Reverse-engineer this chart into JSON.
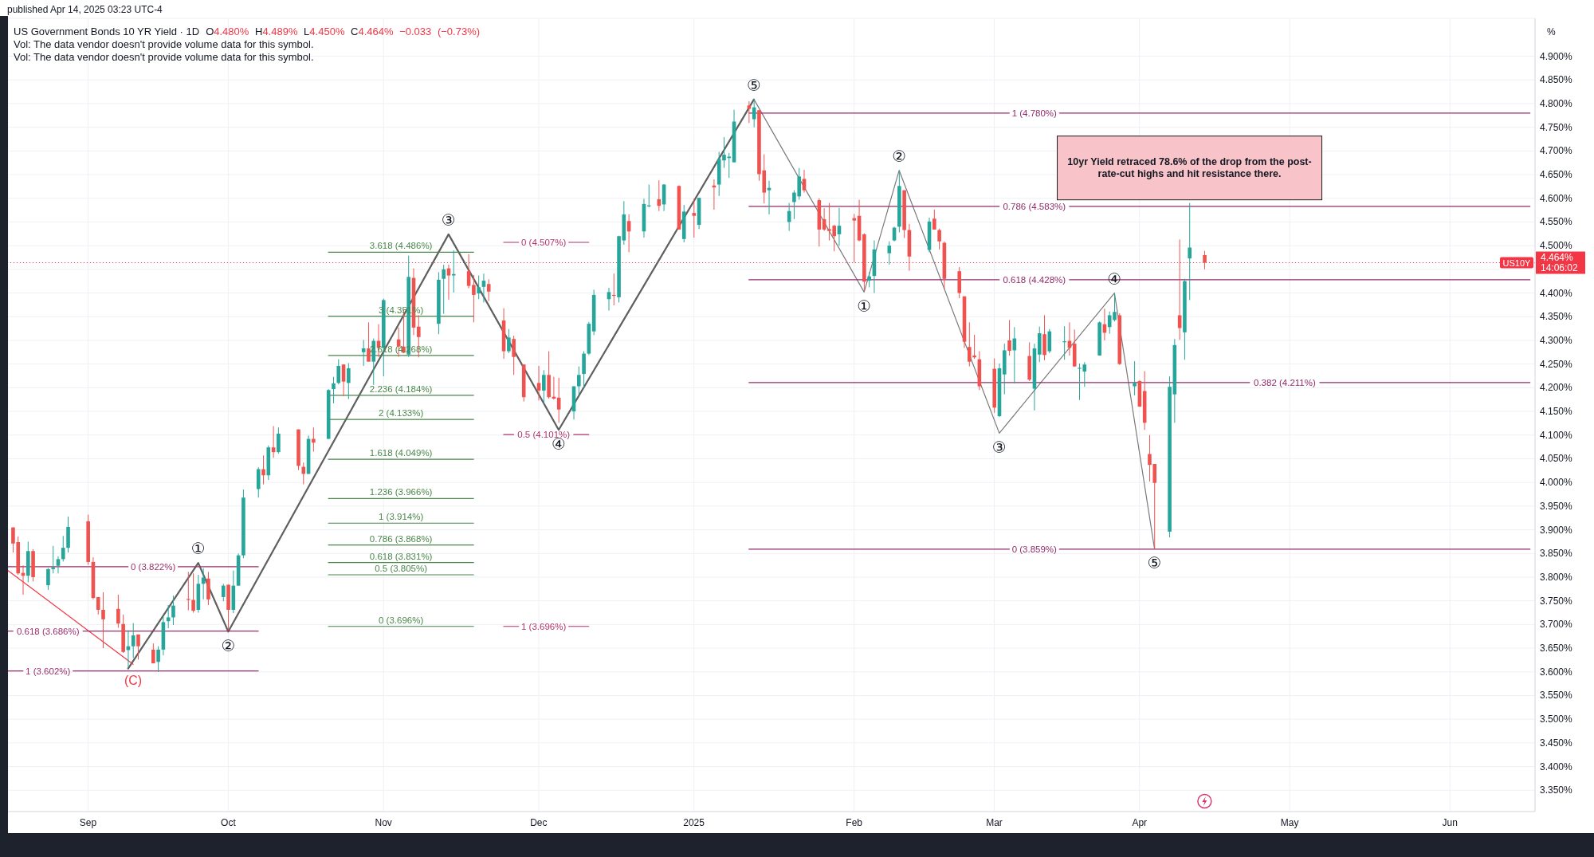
{
  "chart_data": {
    "type": "candlestick",
    "title": "US Government Bonds 10 YR Yield · 1D",
    "subtitle": "O4.480% H4.489% L4.450% C4.464% −0.033 (−0.73%)",
    "ylabel": "%",
    "x": [
      "2024-08-19",
      "2024-08-20",
      "2024-08-21",
      "2024-08-22",
      "2024-08-23",
      "2024-08-26",
      "2024-08-27",
      "2024-08-28",
      "2024-08-29",
      "2024-08-30",
      "2024-09-03",
      "2024-09-04",
      "2024-09-05",
      "2024-09-06",
      "2024-09-09",
      "2024-09-10",
      "2024-09-11",
      "2024-09-12",
      "2024-09-13",
      "2024-09-16",
      "2024-09-17",
      "2024-09-18",
      "2024-09-19",
      "2024-09-20",
      "2024-09-23",
      "2024-09-24",
      "2024-09-25",
      "2024-09-26",
      "2024-09-27",
      "2024-09-30",
      "2024-10-01",
      "2024-10-02",
      "2024-10-03",
      "2024-10-04",
      "2024-10-07",
      "2024-10-08",
      "2024-10-09",
      "2024-10-10",
      "2024-10-11",
      "2024-10-15",
      "2024-10-16",
      "2024-10-17",
      "2024-10-18",
      "2024-10-21",
      "2024-10-22",
      "2024-10-23",
      "2024-10-24",
      "2024-10-25",
      "2024-10-28",
      "2024-10-29",
      "2024-10-30",
      "2024-10-31",
      "2024-11-01",
      "2024-11-04",
      "2024-11-05",
      "2024-11-06",
      "2024-11-07",
      "2024-11-08",
      "2024-11-12",
      "2024-11-13",
      "2024-11-14",
      "2024-11-15",
      "2024-11-18",
      "2024-11-19",
      "2024-11-20",
      "2024-11-21",
      "2024-11-22",
      "2024-11-25",
      "2024-11-26",
      "2024-11-27",
      "2024-11-29",
      "2024-12-02",
      "2024-12-03",
      "2024-12-04",
      "2024-12-05",
      "2024-12-06",
      "2024-12-09",
      "2024-12-10",
      "2024-12-11",
      "2024-12-12",
      "2024-12-13",
      "2024-12-16",
      "2024-12-17",
      "2024-12-18",
      "2024-12-19",
      "2024-12-20",
      "2024-12-23",
      "2024-12-24",
      "2024-12-26",
      "2024-12-27",
      "2024-12-30",
      "2024-12-31",
      "2025-01-02",
      "2025-01-03",
      "2025-01-06",
      "2025-01-07",
      "2025-01-08",
      "2025-01-09",
      "2025-01-10",
      "2025-01-13",
      "2025-01-14",
      "2025-01-15",
      "2025-01-16",
      "2025-01-17",
      "2025-01-21",
      "2025-01-22",
      "2025-01-23",
      "2025-01-24",
      "2025-01-27",
      "2025-01-28",
      "2025-01-29",
      "2025-01-30",
      "2025-01-31",
      "2025-02-03",
      "2025-02-04",
      "2025-02-05",
      "2025-02-06",
      "2025-02-07",
      "2025-02-10",
      "2025-02-11",
      "2025-02-12",
      "2025-02-13",
      "2025-02-14",
      "2025-02-18",
      "2025-02-19",
      "2025-02-20",
      "2025-02-21",
      "2025-02-24",
      "2025-02-25",
      "2025-02-26",
      "2025-02-27",
      "2025-02-28",
      "2025-03-03",
      "2025-03-04",
      "2025-03-05",
      "2025-03-06",
      "2025-03-07",
      "2025-03-10",
      "2025-03-11",
      "2025-03-12",
      "2025-03-13",
      "2025-03-14",
      "2025-03-17",
      "2025-03-18",
      "2025-03-19",
      "2025-03-20",
      "2025-03-21",
      "2025-03-24",
      "2025-03-25",
      "2025-03-26",
      "2025-03-27",
      "2025-03-28",
      "2025-03-31",
      "2025-04-01",
      "2025-04-02",
      "2025-04-03",
      "2025-04-04",
      "2025-04-07",
      "2025-04-08",
      "2025-04-09",
      "2025-04-10",
      "2025-04-11",
      "2025-04-14"
    ],
    "ohlc": [
      [
        3.905,
        3.905,
        3.852,
        3.871
      ],
      [
        3.874,
        3.886,
        3.805,
        3.808
      ],
      [
        3.809,
        3.825,
        3.763,
        3.803
      ],
      [
        3.803,
        3.875,
        3.789,
        3.855
      ],
      [
        3.855,
        3.859,
        3.791,
        3.8
      ],
      [
        3.783,
        3.819,
        3.773,
        3.817
      ],
      [
        3.817,
        3.866,
        3.808,
        3.821
      ],
      [
        3.824,
        3.844,
        3.808,
        3.838
      ],
      [
        3.838,
        3.887,
        3.833,
        3.862
      ],
      [
        3.862,
        3.928,
        3.852,
        3.906
      ],
      [
        3.918,
        3.932,
        3.826,
        3.832
      ],
      [
        3.832,
        3.842,
        3.753,
        3.756
      ],
      [
        3.758,
        3.758,
        3.721,
        3.731
      ],
      [
        3.731,
        3.768,
        3.65,
        3.711
      ],
      [
        3.733,
        3.763,
        3.693,
        3.702
      ],
      [
        3.701,
        3.721,
        3.64,
        3.642
      ],
      [
        3.646,
        3.688,
        3.61,
        3.654
      ],
      [
        3.654,
        3.703,
        3.629,
        3.677
      ],
      [
        3.679,
        3.679,
        3.626,
        3.654
      ],
      [
        3.647,
        3.66,
        3.618,
        3.618
      ],
      [
        3.621,
        3.654,
        3.6,
        3.647
      ],
      [
        3.647,
        3.716,
        3.635,
        3.705
      ],
      [
        3.707,
        3.741,
        3.692,
        3.715
      ],
      [
        3.715,
        3.761,
        3.699,
        3.74
      ],
      [
        3.754,
        3.811,
        3.73,
        3.752
      ],
      [
        3.752,
        3.808,
        3.725,
        3.729
      ],
      [
        3.731,
        3.805,
        3.725,
        3.786
      ],
      [
        3.786,
        3.819,
        3.753,
        3.799
      ],
      [
        3.797,
        3.811,
        3.741,
        3.753
      ],
      [
        3.758,
        3.786,
        3.749,
        3.782
      ],
      [
        3.784,
        3.784,
        3.69,
        3.731
      ],
      [
        3.731,
        3.814,
        3.724,
        3.782
      ],
      [
        3.782,
        3.85,
        3.782,
        3.846
      ],
      [
        3.846,
        3.985,
        3.84,
        3.968
      ],
      [
        3.986,
        4.032,
        3.968,
        4.028
      ],
      [
        4.028,
        4.057,
        3.996,
        4.015
      ],
      [
        4.015,
        4.078,
        4.005,
        4.074
      ],
      [
        4.074,
        4.119,
        4.052,
        4.064
      ],
      [
        4.064,
        4.116,
        4.061,
        4.103
      ],
      [
        4.112,
        4.112,
        4.026,
        4.035
      ],
      [
        4.033,
        4.042,
        3.996,
        4.018
      ],
      [
        4.018,
        4.099,
        4.018,
        4.092
      ],
      [
        4.092,
        4.116,
        4.065,
        4.084
      ],
      [
        4.092,
        4.197,
        4.092,
        4.195
      ],
      [
        4.197,
        4.223,
        4.167,
        4.209
      ],
      [
        4.21,
        4.26,
        4.207,
        4.246
      ],
      [
        4.249,
        4.249,
        4.182,
        4.213
      ],
      [
        4.21,
        4.252,
        4.176,
        4.241
      ],
      [
        4.275,
        4.301,
        4.246,
        4.283
      ],
      [
        4.283,
        4.338,
        4.255,
        4.255
      ],
      [
        4.255,
        4.304,
        4.206,
        4.299
      ],
      [
        4.299,
        4.334,
        4.265,
        4.284
      ],
      [
        4.284,
        4.388,
        4.224,
        4.385
      ],
      [
        4.302,
        4.327,
        4.265,
        4.287
      ],
      [
        4.287,
        4.364,
        4.273,
        4.274
      ],
      [
        4.27,
        4.479,
        4.265,
        4.434
      ],
      [
        4.432,
        4.452,
        4.311,
        4.327
      ],
      [
        4.329,
        4.353,
        4.264,
        4.307
      ],
      [
        4.335,
        4.444,
        4.313,
        4.428
      ],
      [
        4.43,
        4.46,
        4.356,
        4.45
      ],
      [
        4.452,
        4.46,
        4.386,
        4.437
      ],
      [
        4.437,
        4.49,
        4.401,
        4.44
      ],
      [
        4.446,
        4.482,
        4.41,
        4.415
      ],
      [
        4.417,
        4.438,
        4.338,
        4.396
      ],
      [
        4.399,
        4.437,
        4.387,
        4.412
      ],
      [
        4.413,
        4.441,
        4.38,
        4.426
      ],
      [
        4.419,
        4.429,
        4.383,
        4.403
      ],
      [
        4.342,
        4.368,
        4.261,
        4.277
      ],
      [
        4.277,
        4.324,
        4.273,
        4.306
      ],
      [
        4.303,
        4.31,
        4.227,
        4.265
      ],
      [
        4.249,
        4.249,
        4.171,
        4.18
      ],
      [
        4.21,
        4.246,
        4.173,
        4.194
      ],
      [
        4.194,
        4.237,
        4.166,
        4.227
      ],
      [
        4.227,
        4.277,
        4.177,
        4.18
      ],
      [
        4.181,
        4.223,
        4.175,
        4.177
      ],
      [
        4.179,
        4.221,
        4.126,
        4.154
      ],
      [
        4.15,
        4.203,
        4.133,
        4.203
      ],
      [
        4.203,
        4.245,
        4.184,
        4.227
      ],
      [
        4.229,
        4.277,
        4.2,
        4.272
      ],
      [
        4.272,
        4.339,
        4.269,
        4.335
      ],
      [
        4.319,
        4.407,
        4.311,
        4.396
      ],
      [
        4.387,
        4.411,
        4.363,
        4.402
      ],
      [
        4.396,
        4.441,
        4.374,
        4.394
      ],
      [
        4.391,
        4.521,
        4.38,
        4.52
      ],
      [
        4.511,
        4.594,
        4.502,
        4.566
      ],
      [
        4.552,
        4.566,
        4.486,
        4.53
      ],
      [
        4.53,
        4.599,
        4.517,
        4.588
      ],
      [
        4.583,
        4.629,
        4.581,
        4.585
      ],
      [
        4.598,
        4.638,
        4.573,
        4.584
      ],
      [
        4.587,
        4.63,
        4.573,
        4.629
      ],
      [
        4.626,
        4.627,
        4.534,
        4.534
      ],
      [
        4.514,
        4.586,
        4.507,
        4.572
      ],
      [
        4.569,
        4.599,
        4.517,
        4.563
      ],
      [
        4.544,
        4.601,
        4.535,
        4.601
      ],
      [
        4.627,
        4.64,
        4.576,
        4.623
      ],
      [
        4.629,
        4.698,
        4.605,
        4.683
      ],
      [
        4.68,
        4.729,
        4.664,
        4.692
      ],
      [
        4.685,
        4.696,
        4.643,
        4.688
      ],
      [
        4.676,
        4.787,
        4.676,
        4.762
      ],
      [
        4.796,
        4.805,
        4.759,
        4.789
      ],
      [
        4.767,
        4.809,
        4.75,
        4.792
      ],
      [
        4.786,
        4.786,
        4.637,
        4.651
      ],
      [
        4.659,
        4.693,
        4.589,
        4.612
      ],
      [
        4.617,
        4.637,
        4.566,
        4.622
      ],
      [
        4.55,
        4.59,
        4.531,
        4.573
      ],
      [
        4.592,
        4.617,
        4.556,
        4.612
      ],
      [
        4.604,
        4.664,
        4.597,
        4.646
      ],
      [
        4.641,
        4.66,
        4.612,
        4.617
      ],
      [
        4.596,
        4.6,
        4.498,
        4.534
      ],
      [
        4.556,
        4.579,
        4.531,
        4.534
      ],
      [
        4.535,
        4.59,
        4.511,
        4.531
      ],
      [
        4.542,
        4.544,
        4.488,
        4.52
      ],
      [
        4.524,
        4.58,
        4.5,
        4.542
      ],
      [
        4.558,
        4.567,
        4.464,
        4.553
      ],
      [
        4.563,
        4.597,
        4.509,
        4.511
      ],
      [
        4.524,
        4.526,
        4.405,
        4.424
      ],
      [
        4.426,
        4.444,
        4.412,
        4.435
      ],
      [
        4.436,
        4.511,
        4.4,
        4.492
      ],
      [
        4.484,
        4.509,
        4.46,
        4.5
      ],
      [
        4.511,
        4.54,
        4.509,
        4.538
      ],
      [
        4.54,
        4.657,
        4.528,
        4.626
      ],
      [
        4.617,
        4.617,
        4.516,
        4.533
      ],
      [
        4.533,
        4.546,
        4.447,
        4.477
      ],
      [
        4.491,
        4.559,
        4.486,
        4.551
      ],
      [
        4.557,
        4.576,
        4.534,
        4.534
      ],
      [
        4.533,
        4.536,
        4.492,
        4.509
      ],
      [
        4.506,
        4.509,
        4.408,
        4.43
      ],
      [
        4.446,
        4.455,
        4.389,
        4.4
      ],
      [
        4.393,
        4.393,
        4.284,
        4.297
      ],
      [
        4.286,
        4.338,
        4.245,
        4.255
      ],
      [
        4.268,
        4.312,
        4.261,
        4.264
      ],
      [
        4.26,
        4.277,
        4.195,
        4.203
      ],
      [
        4.24,
        4.262,
        4.147,
        4.158
      ],
      [
        4.14,
        4.251,
        4.138,
        4.241
      ],
      [
        4.228,
        4.293,
        4.186,
        4.279
      ],
      [
        4.3,
        4.343,
        4.268,
        4.278
      ],
      [
        4.279,
        4.328,
        4.209,
        4.304
      ],
      [
        4.267,
        4.296,
        4.214,
        4.217
      ],
      [
        4.198,
        4.293,
        4.152,
        4.283
      ],
      [
        4.27,
        4.329,
        4.254,
        4.315
      ],
      [
        4.313,
        4.353,
        4.258,
        4.269
      ],
      [
        4.277,
        4.324,
        4.273,
        4.319
      ],
      [
        4.296,
        4.33,
        4.259,
        4.298
      ],
      [
        4.299,
        4.338,
        4.268,
        4.284
      ],
      [
        4.293,
        4.323,
        4.244,
        4.245
      ],
      [
        4.24,
        4.251,
        4.174,
        4.242
      ],
      [
        4.234,
        4.254,
        4.202,
        4.249
      ],
      [
        4.268,
        4.34,
        4.268,
        4.338
      ],
      [
        4.334,
        4.367,
        4.3,
        4.316
      ],
      [
        4.328,
        4.361,
        4.314,
        4.353
      ],
      [
        4.343,
        4.399,
        4.34,
        4.36
      ],
      [
        4.353,
        4.357,
        4.248,
        4.25
      ],
      [
        4.203,
        4.256,
        4.184,
        4.21
      ],
      [
        4.214,
        4.216,
        4.16,
        4.16
      ],
      [
        4.193,
        4.235,
        4.111,
        4.126
      ],
      [
        4.06,
        4.1,
        4.002,
        4.037
      ],
      [
        4.039,
        4.039,
        3.859,
        3.999
      ],
      [
        3.896,
        4.224,
        3.884,
        4.202
      ],
      [
        4.186,
        4.303,
        4.126,
        4.29
      ],
      [
        4.353,
        4.513,
        4.301,
        4.326
      ],
      [
        4.317,
        4.43,
        4.259,
        4.425
      ],
      [
        4.473,
        4.59,
        4.385,
        4.496
      ],
      [
        4.48,
        4.489,
        4.45,
        4.464
      ]
    ],
    "colors": [
      "#ef5350",
      "#ef5350",
      "#ef5350",
      "#26a69a",
      "#ef5350",
      "#26a69a",
      "#26a69a",
      "#26a69a",
      "#26a69a",
      "#26a69a",
      "#ef5350",
      "#ef5350",
      "#ef5350",
      "#ef5350",
      "#ef5350",
      "#ef5350",
      "#26a69a",
      "#26a69a",
      "#ef5350",
      "#ef5350",
      "#26a69a",
      "#26a69a",
      "#26a69a",
      "#26a69a",
      "#ef5350",
      "#ef5350",
      "#26a69a",
      "#26a69a",
      "#ef5350",
      "#26a69a",
      "#ef5350",
      "#26a69a",
      "#26a69a",
      "#26a69a",
      "#26a69a",
      "#ef5350",
      "#26a69a",
      "#ef5350",
      "#26a69a",
      "#ef5350",
      "#ef5350",
      "#26a69a",
      "#ef5350",
      "#26a69a",
      "#26a69a",
      "#26a69a",
      "#ef5350",
      "#26a69a",
      "#26a69a",
      "#ef5350",
      "#26a69a",
      "#ef5350",
      "#26a69a",
      "#ef5350",
      "#ef5350",
      "#26a69a",
      "#ef5350",
      "#ef5350",
      "#26a69a",
      "#26a69a",
      "#ef5350",
      "#26a69a",
      "#ef5350",
      "#ef5350",
      "#26a69a",
      "#26a69a",
      "#ef5350",
      "#ef5350",
      "#26a69a",
      "#ef5350",
      "#ef5350",
      "#ef5350",
      "#26a69a",
      "#ef5350",
      "#ef5350",
      "#ef5350",
      "#26a69a",
      "#26a69a",
      "#26a69a",
      "#26a69a",
      "#26a69a",
      "#26a69a",
      "#ef5350",
      "#26a69a",
      "#26a69a",
      "#ef5350",
      "#26a69a",
      "#26a69a",
      "#ef5350",
      "#26a69a",
      "#ef5350",
      "#26a69a",
      "#ef5350",
      "#26a69a",
      "#ef5350",
      "#26a69a",
      "#26a69a",
      "#26a69a",
      "#26a69a",
      "#ef5350",
      "#26a69a",
      "#ef5350",
      "#ef5350",
      "#26a69a",
      "#26a69a",
      "#26a69a",
      "#26a69a",
      "#ef5350",
      "#ef5350",
      "#ef5350",
      "#ef5350",
      "#ef5350",
      "#26a69a",
      "#ef5350",
      "#ef5350",
      "#ef5350",
      "#26a69a",
      "#26a69a",
      "#26a69a",
      "#26a69a",
      "#26a69a",
      "#ef5350",
      "#ef5350",
      "#26a69a",
      "#ef5350",
      "#ef5350",
      "#ef5350",
      "#ef5350",
      "#ef5350",
      "#ef5350",
      "#ef5350",
      "#ef5350",
      "#ef5350",
      "#26a69a",
      "#26a69a",
      "#ef5350",
      "#26a69a",
      "#ef5350",
      "#26a69a",
      "#26a69a",
      "#ef5350",
      "#26a69a",
      "#26a69a",
      "#ef5350",
      "#ef5350",
      "#26a69a",
      "#26a69a",
      "#26a69a",
      "#ef5350",
      "#26a69a",
      "#26a69a",
      "#ef5350",
      "#26a69a",
      "#ef5350",
      "#ef5350",
      "#ef5350",
      "#ef5350",
      "#26a69a",
      "#26a69a",
      "#ef5350",
      "#26a69a",
      "#26a69a",
      "#ef5350"
    ],
    "xlim": [
      "2024-08-18",
      "2025-06-19"
    ],
    "xticks": [
      {
        "value": "2024-09-03",
        "label": "Sep"
      },
      {
        "value": "2024-10-01",
        "label": "Oct"
      },
      {
        "value": "2024-11-01",
        "label": "Nov"
      },
      {
        "value": "2024-12-02",
        "label": "Dec"
      },
      {
        "value": "2025-01-02",
        "label": "2025"
      },
      {
        "value": "2025-02-03",
        "label": "Feb"
      },
      {
        "value": "2025-03-03",
        "label": "Mar"
      },
      {
        "value": "2025-04-01",
        "label": "Apr"
      },
      {
        "value": "2025-05-01",
        "label": "May"
      },
      {
        "value": "2025-06-02",
        "label": "Jun"
      }
    ],
    "ylim": [
      3.305,
      4.98
    ],
    "yticks": [
      {
        "value": 3.35,
        "label": "3.350%"
      },
      {
        "value": 3.4,
        "label": "3.400%"
      },
      {
        "value": 3.45,
        "label": "3.450%"
      },
      {
        "value": 3.5,
        "label": "3.500%"
      },
      {
        "value": 3.55,
        "label": "3.550%"
      },
      {
        "value": 3.6,
        "label": "3.600%"
      },
      {
        "value": 3.65,
        "label": "3.650%"
      },
      {
        "value": 3.7,
        "label": "3.700%"
      },
      {
        "value": 3.75,
        "label": "3.750%"
      },
      {
        "value": 3.8,
        "label": "3.800%"
      },
      {
        "value": 3.85,
        "label": "3.850%"
      },
      {
        "value": 3.9,
        "label": "3.900%"
      },
      {
        "value": 3.95,
        "label": "3.950%"
      },
      {
        "value": 4,
        "label": "4.000%"
      },
      {
        "value": 4.05,
        "label": "4.050%"
      },
      {
        "value": 4.1,
        "label": "4.100%"
      },
      {
        "value": 4.15,
        "label": "4.150%"
      },
      {
        "value": 4.2,
        "label": "4.200%"
      },
      {
        "value": 4.25,
        "label": "4.250%"
      },
      {
        "value": 4.3,
        "label": "4.300%"
      },
      {
        "value": 4.35,
        "label": "4.350%"
      },
      {
        "value": 4.4,
        "label": "4.400%"
      },
      {
        "value": 4.45,
        "label": null
      },
      {
        "value": 4.464,
        "label": "4.464%\n14:06:02"
      },
      {
        "value": 4.5,
        "label": "4.500%"
      },
      {
        "value": 4.55,
        "label": "4.550%"
      },
      {
        "value": 4.6,
        "label": "4.600%"
      },
      {
        "value": 4.65,
        "label": "4.650%"
      },
      {
        "value": 4.7,
        "label": "4.700%"
      },
      {
        "value": 4.75,
        "label": "4.750%"
      },
      {
        "value": 4.8,
        "label": "4.800%"
      },
      {
        "value": 4.85,
        "label": "4.850%"
      },
      {
        "value": 4.9,
        "label": "4.900%"
      }
    ],
    "grid": true,
    "series": [
      {
        "type": "line",
        "color": "#5f5f5f",
        "x": [
          "2024-09-11",
          "2024-09-25",
          "2024-10-01",
          "2024-11-14",
          "2024-12-06",
          "2025-01-14"
        ],
        "values": [
          3.607,
          3.83,
          3.685,
          4.524,
          4.111,
          4.809
        ]
      },
      {
        "type": "line",
        "color": "#7a7a7a",
        "x": [
          "2025-01-14",
          "2025-02-05",
          "2025-02-12",
          "2025-03-04",
          "2025-03-27",
          "2025-04-04"
        ],
        "values": [
          4.809,
          4.402,
          4.659,
          4.104,
          4.4,
          3.86
        ]
      },
      {
        "type": "line",
        "name": "(C)",
        "color": "#f23645",
        "x": [
          "2024-08-18",
          "2024-09-12"
        ],
        "values": [
          3.814,
          3.616
        ]
      },
      {
        "type": "line",
        "name": "0 (3.822%)",
        "color": "#9c2f6c",
        "x": [
          "2024-08-18",
          "2024-09-11",
          "2024-09-16",
          "2024-09-21",
          "2024-10-07"
        ],
        "values": [
          3.822,
          3.822,
          null,
          3.822,
          3.822
        ]
      },
      {
        "type": "line",
        "name": "0.618 (3.686%)",
        "color": "#9c2f6c",
        "x": [
          "2024-08-18",
          "2024-08-19",
          "2024-08-26",
          "2024-09-02",
          "2024-10-07"
        ],
        "values": [
          3.686,
          3.686,
          null,
          3.686,
          3.686
        ]
      },
      {
        "type": "line",
        "name": "1 (3.602%)",
        "color": "#9c2f6c",
        "x": [
          "2024-08-18",
          "2024-08-21",
          "2024-08-26",
          "2024-08-31",
          "2024-10-07"
        ],
        "values": [
          3.602,
          3.602,
          null,
          3.602,
          3.602
        ]
      },
      {
        "type": "line",
        "name": "0 (3.696%)",
        "color": "#4a874a",
        "x": [
          "2024-10-21",
          "2024-11-19"
        ],
        "values": [
          3.696,
          3.696
        ]
      },
      {
        "type": "line",
        "name": "0.5 (3.805%)",
        "color": "#4a874a",
        "x": [
          "2024-10-21",
          "2024-11-19"
        ],
        "values": [
          3.805,
          3.805
        ]
      },
      {
        "type": "line",
        "name": "0.618 (3.831%)",
        "color": "#4a874a",
        "x": [
          "2024-10-21",
          "2024-11-19"
        ],
        "values": [
          3.831,
          3.831
        ]
      },
      {
        "type": "line",
        "name": "0.786 (3.868%)",
        "color": "#4a874a",
        "x": [
          "2024-10-21",
          "2024-11-19"
        ],
        "values": [
          3.868,
          3.868
        ]
      },
      {
        "type": "line",
        "name": "1 (3.914%)",
        "color": "#4a874a",
        "x": [
          "2024-10-21",
          "2024-11-19"
        ],
        "values": [
          3.914,
          3.914
        ]
      },
      {
        "type": "line",
        "name": "1.236 (3.966%)",
        "color": "#4a874a",
        "x": [
          "2024-10-21",
          "2024-11-19"
        ],
        "values": [
          3.966,
          3.966
        ]
      },
      {
        "type": "line",
        "name": "1.618 (4.049%)",
        "color": "#4a874a",
        "x": [
          "2024-10-21",
          "2024-11-19"
        ],
        "values": [
          4.049,
          4.049
        ]
      },
      {
        "type": "line",
        "name": "2 (4.133%)",
        "color": "#4a874a",
        "x": [
          "2024-10-21",
          "2024-11-19"
        ],
        "values": [
          4.133,
          4.133
        ]
      },
      {
        "type": "line",
        "name": "2.236 (4.184%)",
        "color": "#4a874a",
        "x": [
          "2024-10-21",
          "2024-11-19"
        ],
        "values": [
          4.184,
          4.184
        ]
      },
      {
        "type": "line",
        "name": "2.618 (4.268%)",
        "color": "#4a874a",
        "x": [
          "2024-10-21",
          "2024-11-19"
        ],
        "values": [
          4.268,
          4.268
        ]
      },
      {
        "type": "line",
        "name": "3 (4.351%)",
        "color": "#4a874a",
        "x": [
          "2024-10-21",
          "2024-11-19"
        ],
        "values": [
          4.351,
          4.351
        ]
      },
      {
        "type": "line",
        "name": "3.618 (4.486%)",
        "color": "#4a874a",
        "x": [
          "2024-10-21",
          "2024-11-19"
        ],
        "values": [
          4.486,
          4.486
        ]
      },
      {
        "type": "line",
        "name": "0 (4.507%)",
        "color": "#b2336c",
        "x": [
          "2024-11-25",
          "2024-11-28",
          "2024-12-03",
          "2024-12-08",
          "2024-12-12"
        ],
        "values": [
          4.507,
          4.507,
          null,
          4.507,
          4.507
        ]
      },
      {
        "type": "line",
        "name": "0.5 (4.101%)",
        "color": "#b2336c",
        "x": [
          "2024-11-25",
          "2024-11-27",
          "2024-12-03",
          "2024-12-09",
          "2024-12-12"
        ],
        "values": [
          4.101,
          4.101,
          null,
          4.101,
          4.101
        ]
      },
      {
        "type": "line",
        "name": "1 (3.696%)",
        "color": "#b2336c",
        "x": [
          "2024-11-25",
          "2024-11-28",
          "2024-12-03",
          "2024-12-08",
          "2024-12-12"
        ],
        "values": [
          3.696,
          3.696,
          null,
          3.696,
          3.696
        ]
      },
      {
        "type": "line",
        "name": "1 (4.780%)",
        "color": "#922b6a",
        "x": [
          "2025-01-13",
          "2025-03-06",
          "2025-03-11",
          "2025-03-16",
          "2025-06-18"
        ],
        "values": [
          4.78,
          4.78,
          null,
          4.78,
          4.78
        ]
      },
      {
        "type": "line",
        "name": "0.786 (4.583%)",
        "color": "#922b6a",
        "x": [
          "2025-01-13",
          "2025-03-04",
          "2025-03-11",
          "2025-03-18",
          "2025-06-18"
        ],
        "values": [
          4.583,
          4.583,
          null,
          4.583,
          4.583
        ]
      },
      {
        "type": "line",
        "name": "0.618 (4.428%)",
        "color": "#922b6a",
        "x": [
          "2025-01-13",
          "2025-03-04",
          "2025-03-11",
          "2025-03-18",
          "2025-06-18"
        ],
        "values": [
          4.428,
          4.428,
          null,
          4.428,
          4.428
        ]
      },
      {
        "type": "line",
        "name": "0.382 (4.211%)",
        "color": "#922b6a",
        "x": [
          "2025-01-13",
          "2025-04-23",
          "2025-04-30",
          "2025-05-07",
          "2025-06-18"
        ],
        "values": [
          4.211,
          4.211,
          null,
          4.211,
          4.211
        ]
      },
      {
        "type": "line",
        "name": "0 (3.859%)",
        "color": "#922b6a",
        "x": [
          "2025-01-13",
          "2025-03-06",
          "2025-03-11",
          "2025-03-16",
          "2025-06-18"
        ],
        "values": [
          3.859,
          3.859,
          null,
          3.859,
          3.859
        ]
      }
    ],
    "ref_lines": [
      {
        "axis": "y",
        "value": 4.464,
        "label": "US10Y",
        "color": "#f23645",
        "line_style": "dotted"
      }
    ],
    "annotations": [
      "published Apr 14, 2025 03:23 UTC-4",
      "Vol: The data vendor doesn't provide volume data for this symbol.",
      "Vol: The data vendor doesn't provide volume data for this symbol.",
      {
        "text": "①",
        "x": "2024-09-25",
        "y": 3.83
      },
      {
        "text": "②",
        "x": "2024-10-01",
        "y": 3.685
      },
      {
        "text": "③",
        "x": "2024-11-14",
        "y": 4.524
      },
      {
        "text": "④",
        "x": "2024-12-06",
        "y": 4.111
      },
      {
        "text": "⑤",
        "x": "2025-01-14",
        "y": 4.809
      },
      {
        "text": "①",
        "x": "2025-02-05",
        "y": 4.402
      },
      {
        "text": "②",
        "x": "2025-02-12",
        "y": 4.659
      },
      {
        "text": "③",
        "x": "2025-03-04",
        "y": 4.104
      },
      {
        "text": "④",
        "x": "2025-03-27",
        "y": 4.4
      },
      {
        "text": "⑤",
        "x": "2025-04-04",
        "y": 3.86
      },
      {
        "text": "10yr Yield retraced 78.6% of the drop from the post-rate-cut highs and hit resistance there.",
        "x": "2025-04-11",
        "y": 4.59
      }
    ]
  }
}
